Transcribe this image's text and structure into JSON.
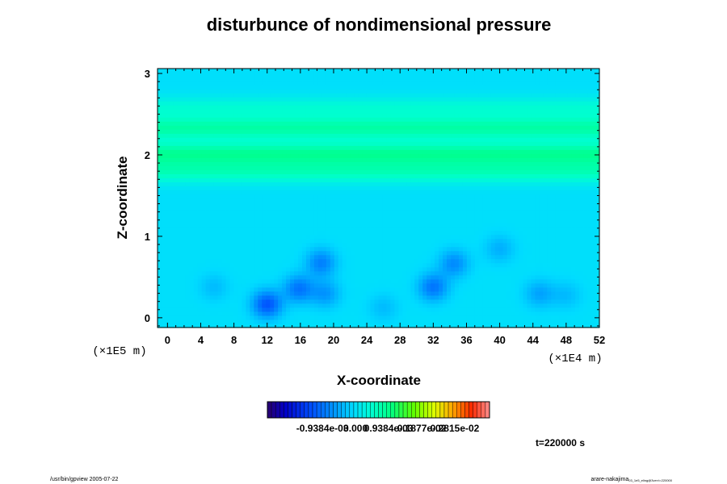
{
  "chart_data": {
    "type": "heatmap",
    "title": "disturbunce of nondimensional pressure",
    "xlabel": "X-coordinate",
    "ylabel": "Z-coordinate",
    "x_unit": "(×1E4 m)",
    "z_unit": "(×1E5 m)",
    "xlim": [
      -1.2,
      52
    ],
    "ylim": [
      -0.12,
      3.06
    ],
    "x_ticks": [
      0,
      4,
      8,
      12,
      16,
      20,
      24,
      28,
      32,
      36,
      40,
      44,
      48,
      52
    ],
    "y_ticks": [
      0,
      1,
      2,
      3
    ],
    "colorbar": {
      "range": [
        -0.0025,
        0.0038
      ],
      "tick_labels": [
        "-0.9384e-03",
        "0.000",
        "0.9384e-03",
        "0.1877e-02",
        "0.2815e-02"
      ],
      "tick_values": [
        -0.0009384,
        0.0,
        0.0009384,
        0.001877,
        0.002815
      ]
    },
    "time_label": "t=220000 s",
    "features": [
      {
        "kind": "band",
        "z": 2.02,
        "value": 0.00085
      },
      {
        "kind": "band",
        "z": 2.33,
        "value": 0.00075
      },
      {
        "kind": "band",
        "z": 1.8,
        "value": 0.0006
      },
      {
        "kind": "band",
        "z": 2.58,
        "value": 0.0004
      },
      {
        "kind": "low",
        "x": 12.0,
        "z": 0.17,
        "value": -0.0012
      },
      {
        "kind": "low",
        "x": 15.8,
        "z": 0.36,
        "value": -0.0009
      },
      {
        "kind": "low",
        "x": 18.5,
        "z": 0.68,
        "value": -0.0008
      },
      {
        "kind": "low",
        "x": 19.0,
        "z": 0.3,
        "value": -0.0006
      },
      {
        "kind": "low",
        "x": 5.6,
        "z": 0.38,
        "value": -0.0003
      },
      {
        "kind": "low",
        "x": 32.0,
        "z": 0.38,
        "value": -0.0009
      },
      {
        "kind": "low",
        "x": 34.5,
        "z": 0.67,
        "value": -0.0007
      },
      {
        "kind": "low",
        "x": 40.0,
        "z": 0.85,
        "value": -0.0004
      },
      {
        "kind": "low",
        "x": 44.8,
        "z": 0.3,
        "value": -0.0005
      },
      {
        "kind": "low",
        "x": 48.0,
        "z": 0.28,
        "value": -0.0003
      },
      {
        "kind": "low",
        "x": 26.0,
        "z": 0.13,
        "value": -0.0003
      }
    ]
  },
  "footer": {
    "left": "/usr/bin/gpview 2005-07-22",
    "right_main": "arare-nakajima",
    "right_sub": "03_1e5_eling@3ver:t=220000"
  }
}
